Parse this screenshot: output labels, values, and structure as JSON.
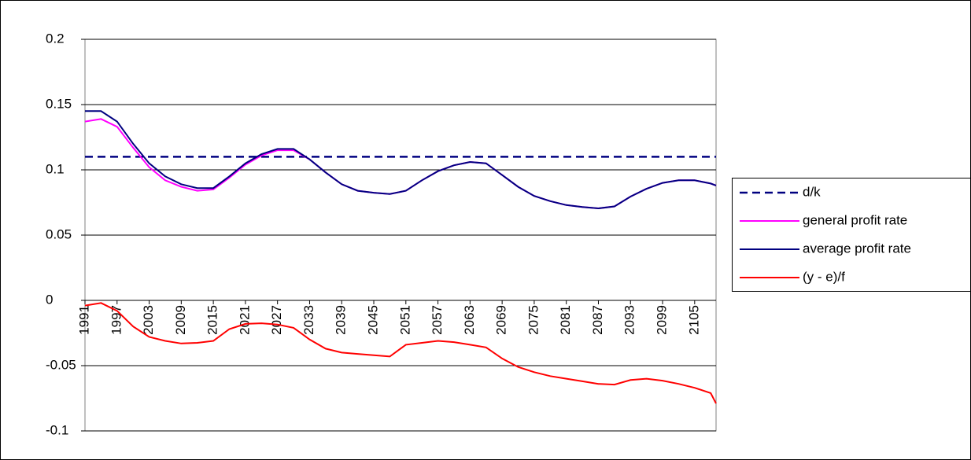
{
  "chart_data": {
    "type": "line",
    "x": [
      1991,
      1994,
      1997,
      2000,
      2003,
      2006,
      2009,
      2012,
      2015,
      2018,
      2021,
      2024,
      2027,
      2030,
      2033,
      2036,
      2039,
      2042,
      2045,
      2048,
      2051,
      2054,
      2057,
      2060,
      2063,
      2066,
      2069,
      2072,
      2075,
      2078,
      2081,
      2084,
      2087,
      2090,
      2093,
      2096,
      2099,
      2102,
      2105,
      2108,
      2109
    ],
    "xlim": [
      1991,
      2109
    ],
    "xticks": [
      1991,
      1997,
      2003,
      2009,
      2015,
      2021,
      2027,
      2033,
      2039,
      2045,
      2051,
      2057,
      2063,
      2069,
      2075,
      2081,
      2087,
      2093,
      2099,
      2105
    ],
    "ylim": [
      -0.1,
      0.2
    ],
    "yticks": [
      0.2,
      0.15,
      0.1,
      0.05,
      0,
      -0.05,
      -0.1
    ],
    "grid": true,
    "legend": "right",
    "series": [
      {
        "name": "d/k",
        "color": "#000080",
        "dash": true,
        "values": [
          0.11,
          0.11,
          0.11,
          0.11,
          0.11,
          0.11,
          0.11,
          0.11,
          0.11,
          0.11,
          0.11,
          0.11,
          0.11,
          0.11,
          0.11,
          0.11,
          0.11,
          0.11,
          0.11,
          0.11,
          0.11,
          0.11,
          0.11,
          0.11,
          0.11,
          0.11,
          0.11,
          0.11,
          0.11,
          0.11,
          0.11,
          0.11,
          0.11,
          0.11,
          0.11,
          0.11,
          0.11,
          0.11,
          0.11,
          0.11,
          0.11
        ]
      },
      {
        "name": "general profit rate",
        "color": "#ff00ff",
        "values": [
          0.137,
          0.139,
          0.133,
          0.117,
          0.102,
          0.092,
          0.087,
          0.084,
          0.085,
          0.094,
          0.104,
          0.111,
          0.115,
          0.115,
          0.108,
          0.098,
          0.089,
          0.084,
          0.0825,
          0.0815,
          0.084,
          0.092,
          0.099,
          0.1035,
          0.106,
          0.105,
          0.096,
          0.087,
          0.08,
          0.076,
          0.073,
          0.0715,
          0.0705,
          0.072,
          0.0795,
          0.0855,
          0.09,
          0.092,
          0.092,
          0.0895,
          0.088
        ]
      },
      {
        "name": "average profit rate",
        "color": "#000080",
        "values": [
          0.145,
          0.145,
          0.137,
          0.12,
          0.105,
          0.095,
          0.089,
          0.086,
          0.086,
          0.095,
          0.105,
          0.112,
          0.116,
          0.116,
          0.108,
          0.098,
          0.089,
          0.084,
          0.0825,
          0.0815,
          0.084,
          0.092,
          0.099,
          0.1035,
          0.106,
          0.105,
          0.096,
          0.087,
          0.08,
          0.076,
          0.073,
          0.0715,
          0.0705,
          0.072,
          0.0795,
          0.0855,
          0.09,
          0.092,
          0.092,
          0.0895,
          0.088
        ]
      },
      {
        "name": "(y - e)/f",
        "color": "#ff0000",
        "values": [
          -0.004,
          -0.002,
          -0.008,
          -0.02,
          -0.028,
          -0.031,
          -0.033,
          -0.0325,
          -0.031,
          -0.022,
          -0.018,
          -0.0175,
          -0.0185,
          -0.021,
          -0.03,
          -0.037,
          -0.04,
          -0.041,
          -0.042,
          -0.043,
          -0.034,
          -0.0325,
          -0.031,
          -0.032,
          -0.034,
          -0.036,
          -0.0445,
          -0.051,
          -0.055,
          -0.058,
          -0.06,
          -0.062,
          -0.064,
          -0.0645,
          -0.061,
          -0.06,
          -0.0615,
          -0.064,
          -0.067,
          -0.071,
          -0.079
        ]
      }
    ]
  }
}
